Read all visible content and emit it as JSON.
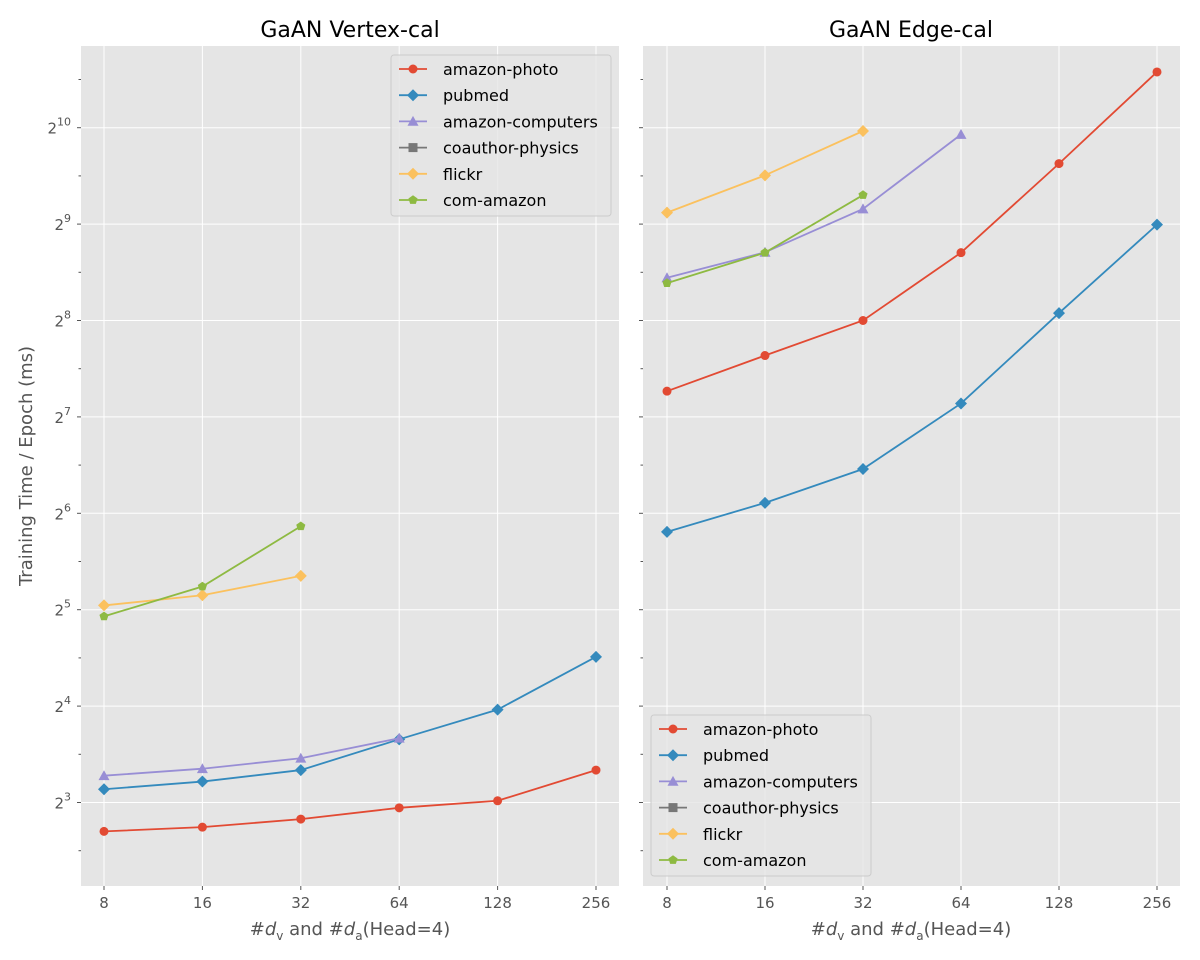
{
  "chart_data": [
    {
      "type": "line",
      "title": "GaAN Vertex-cal",
      "xlabel": "#d_v and #d_a(Head=4)",
      "ylabel": "Training Time / Epoch (ms)",
      "xscale": "log2",
      "yscale": "log2",
      "xticks": [
        "8",
        "16",
        "32",
        "64",
        "128",
        "256"
      ],
      "yticks": [
        {
          "base": "2",
          "exp": "3"
        },
        {
          "base": "2",
          "exp": "4"
        },
        {
          "base": "2",
          "exp": "5"
        },
        {
          "base": "2",
          "exp": "6"
        },
        {
          "base": "2",
          "exp": "7"
        },
        {
          "base": "2",
          "exp": "8"
        },
        {
          "base": "2",
          "exp": "9"
        },
        {
          "base": "2",
          "exp": "10"
        }
      ],
      "ylim_log2": [
        2.15,
        10.95
      ],
      "grid": true,
      "legend_position": "top-right",
      "series": [
        {
          "name": "amazon-photo",
          "color": "#E24A33",
          "marker": "circle",
          "x": [
            8,
            16,
            32,
            64,
            128,
            256
          ],
          "y": [
            6.5,
            6.7,
            7.1,
            7.7,
            8.1,
            10.1
          ]
        },
        {
          "name": "pubmed",
          "color": "#348ABD",
          "marker": "diamond",
          "x": [
            8,
            16,
            32,
            64,
            128,
            256
          ],
          "y": [
            8.8,
            9.3,
            10.1,
            12.6,
            15.6,
            22.8
          ]
        },
        {
          "name": "amazon-computers",
          "color": "#988ED5",
          "marker": "triangle",
          "x": [
            8,
            16,
            32,
            64
          ],
          "y": [
            9.7,
            10.2,
            11.0,
            12.7
          ]
        },
        {
          "name": "coauthor-physics",
          "color": "#777777",
          "marker": "square",
          "x": [],
          "y": []
        },
        {
          "name": "flickr",
          "color": "#FBC15E",
          "marker": "diamond",
          "x": [
            8,
            16,
            32
          ],
          "y": [
            33.0,
            35.5,
            40.8
          ]
        },
        {
          "name": "com-amazon",
          "color": "#8EBA42",
          "marker": "pentagon",
          "x": [
            8,
            16,
            32
          ],
          "y": [
            30.5,
            37.8,
            58.3
          ]
        }
      ]
    },
    {
      "type": "line",
      "title": "GaAN Edge-cal",
      "xlabel": "#d_v and #d_a(Head=4)",
      "ylabel": "",
      "xscale": "log2",
      "yscale": "log2",
      "xticks": [
        "8",
        "16",
        "32",
        "64",
        "128",
        "256"
      ],
      "ylim_log2": [
        2.15,
        10.95
      ],
      "grid": true,
      "legend_position": "bottom-left",
      "series": [
        {
          "name": "amazon-photo",
          "color": "#E24A33",
          "marker": "circle",
          "x": [
            8,
            16,
            32,
            64,
            128,
            256
          ],
          "y": [
            154,
            199,
            256,
            417,
            791,
            1529
          ]
        },
        {
          "name": "pubmed",
          "color": "#348ABD",
          "marker": "diamond",
          "x": [
            8,
            16,
            32,
            64,
            128,
            256
          ],
          "y": [
            56,
            69,
            88,
            141,
            270,
            510
          ]
        },
        {
          "name": "amazon-computers",
          "color": "#988ED5",
          "marker": "triangle",
          "x": [
            8,
            16,
            32,
            64
          ],
          "y": [
            348,
            418,
            571,
            975
          ]
        },
        {
          "name": "coauthor-physics",
          "color": "#777777",
          "marker": "square",
          "x": [],
          "y": []
        },
        {
          "name": "flickr",
          "color": "#FBC15E",
          "marker": "diamond",
          "x": [
            8,
            16,
            32
          ],
          "y": [
            556,
            727,
            1000
          ]
        },
        {
          "name": "com-amazon",
          "color": "#8EBA42",
          "marker": "pentagon",
          "x": [
            8,
            16,
            32
          ],
          "y": [
            335,
            417,
            631
          ]
        }
      ]
    }
  ]
}
